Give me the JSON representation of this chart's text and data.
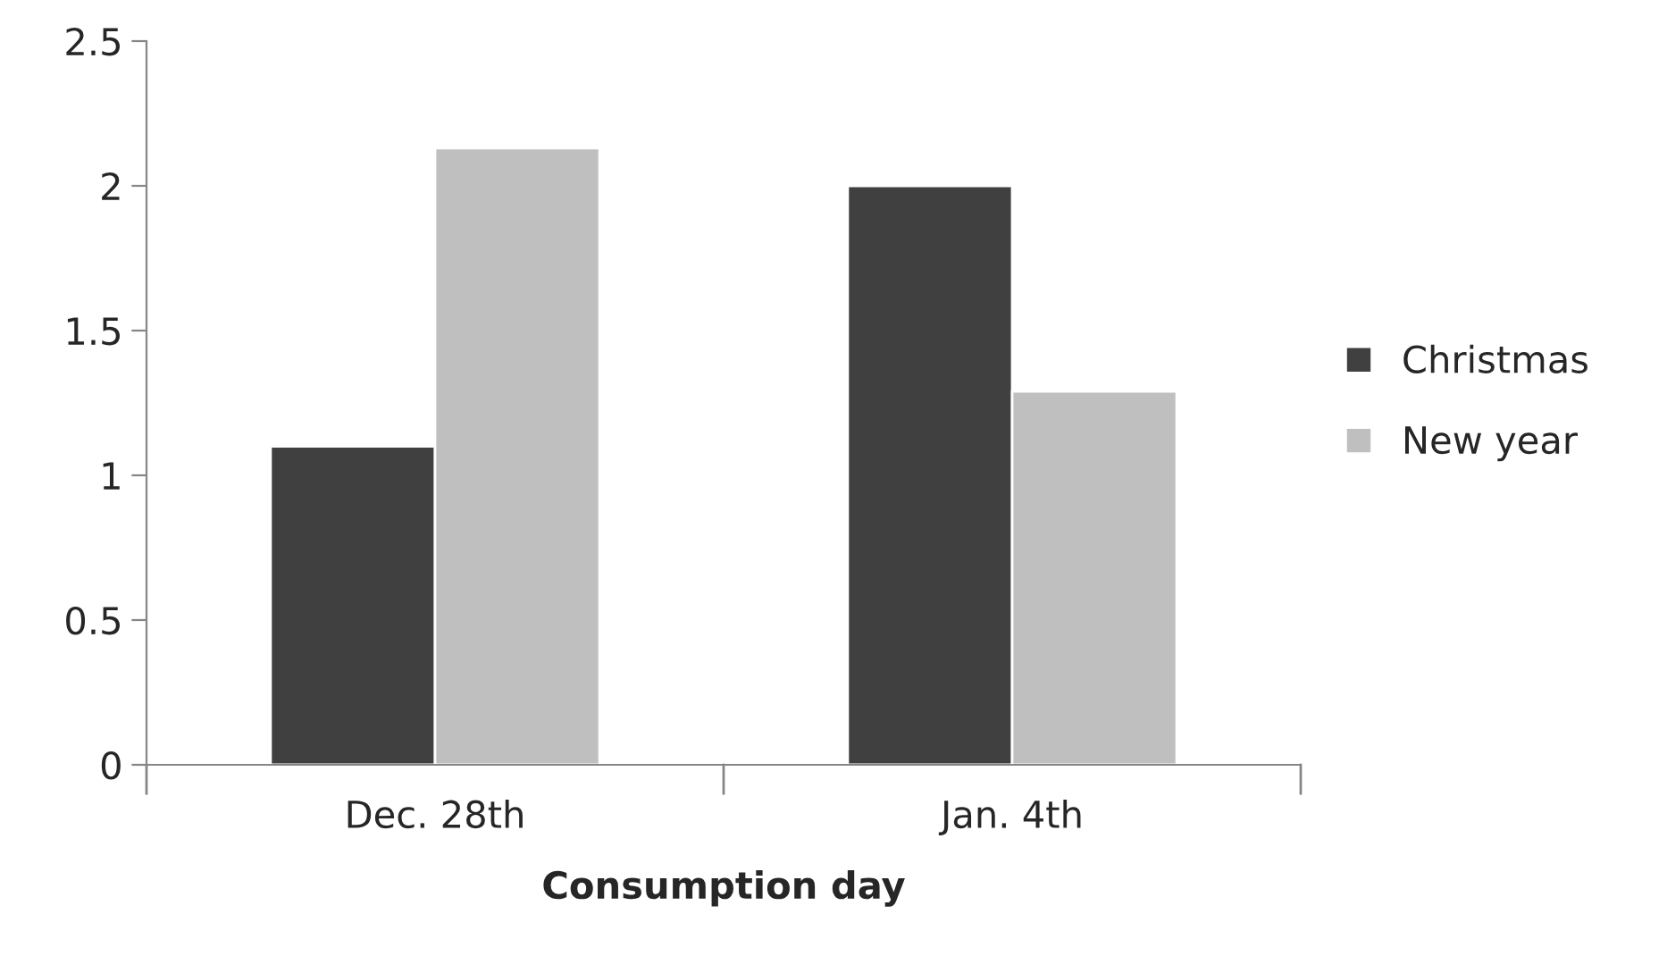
{
  "chart_data": {
    "type": "bar",
    "xlabel": "Consumption day",
    "categories": [
      "Dec. 28th",
      "Jan. 4th"
    ],
    "series": [
      {
        "name": "Christmas",
        "color": "#404040",
        "values": [
          1.1,
          2.0
        ]
      },
      {
        "name": "New year",
        "color": "#bfbfbf",
        "values": [
          2.13,
          1.29
        ]
      }
    ],
    "ylim": [
      0,
      2.5
    ],
    "yticks": [
      0,
      0.5,
      1,
      1.5,
      2,
      2.5
    ],
    "grid": false,
    "legend": "right"
  }
}
